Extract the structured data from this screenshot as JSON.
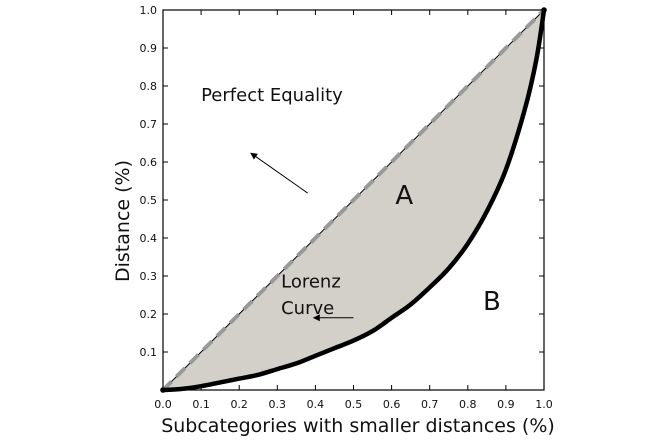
{
  "chart_data": {
    "type": "line",
    "title": "",
    "xlabel": "Subcategories with smaller distances (%)",
    "ylabel": "Distance (%)",
    "xlim": [
      0,
      1
    ],
    "ylim": [
      0,
      1
    ],
    "x_ticks": [
      "0.0",
      "0.1",
      "0.2",
      "0.3",
      "0.4",
      "0.5",
      "0.6",
      "0.7",
      "0.8",
      "0.9",
      "1.0"
    ],
    "y_ticks": [
      "0.1",
      "0.2",
      "0.3",
      "0.4",
      "0.5",
      "0.6",
      "0.7",
      "0.8",
      "0.9",
      "1.0"
    ],
    "grid": false,
    "series": [
      {
        "key": "equality",
        "x": [
          0,
          1
        ],
        "y": [
          0,
          1
        ],
        "color": "#999999",
        "style": "dashed"
      },
      {
        "key": "lorenz",
        "x": [
          0,
          0.05,
          0.1,
          0.15,
          0.2,
          0.25,
          0.3,
          0.35,
          0.4,
          0.45,
          0.5,
          0.55,
          0.6,
          0.65,
          0.7,
          0.75,
          0.8,
          0.85,
          0.9,
          0.95,
          0.98,
          1.0
        ],
        "y": [
          0,
          0.003,
          0.01,
          0.02,
          0.03,
          0.04,
          0.055,
          0.07,
          0.09,
          0.11,
          0.13,
          0.155,
          0.19,
          0.225,
          0.27,
          0.32,
          0.385,
          0.47,
          0.58,
          0.74,
          0.87,
          1.0
        ],
        "color": "#000000",
        "style": "solid"
      }
    ],
    "fill_between": {
      "upper": "equality",
      "lower": "lorenz",
      "color": "#d3cfc9"
    },
    "annotations": [
      {
        "key": "equality_label",
        "text": "Perfect Equality",
        "x": 0.1,
        "y": 0.76,
        "arrow_to": [
          0.38,
          0.655
        ]
      },
      {
        "key": "lorenz_label_line1",
        "text": "Lorenz",
        "x": 0.31,
        "y": 0.27
      },
      {
        "key": "lorenz_label_line2",
        "text": "Curve",
        "x": 0.31,
        "y": 0.2,
        "arrow_to": [
          0.5,
          0.19
        ]
      },
      {
        "key": "region_a",
        "text": "A",
        "x": 0.61,
        "y": 0.49
      },
      {
        "key": "region_b",
        "text": "B",
        "x": 0.84,
        "y": 0.21
      }
    ]
  }
}
